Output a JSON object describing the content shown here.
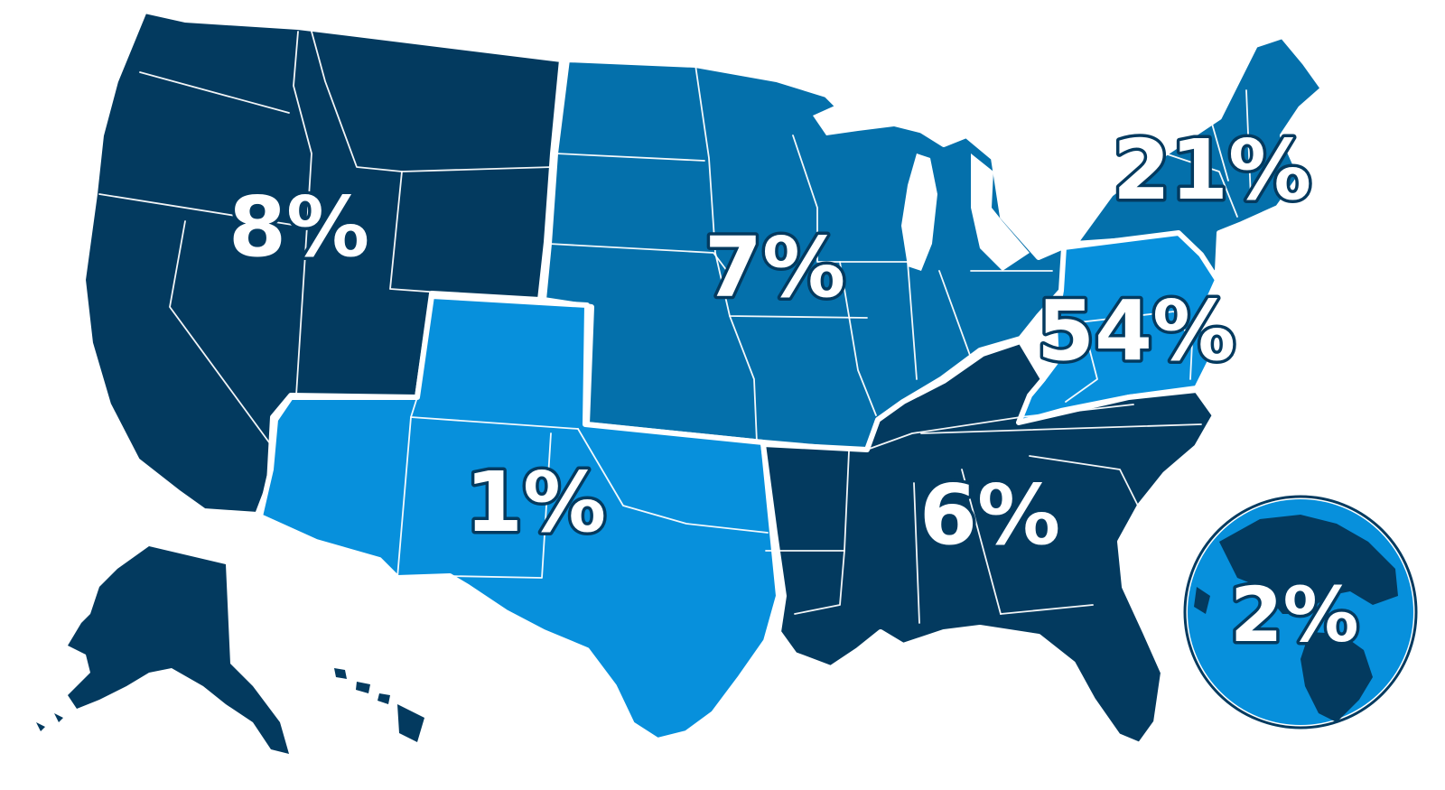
{
  "regions": {
    "west": {
      "percent": "8%"
    },
    "midwest": {
      "percent": "7%"
    },
    "northeast": {
      "percent": "21%"
    },
    "mid_atlantic": {
      "percent": "54%"
    },
    "southwest": {
      "percent": "1%"
    },
    "southeast": {
      "percent": "6%"
    },
    "international": {
      "percent": "2%"
    }
  },
  "colors": {
    "dark_navy": "#033a5f",
    "mid_blue": "#0470ab",
    "bright_blue": "#0790dc",
    "outline": "#ffffff"
  }
}
